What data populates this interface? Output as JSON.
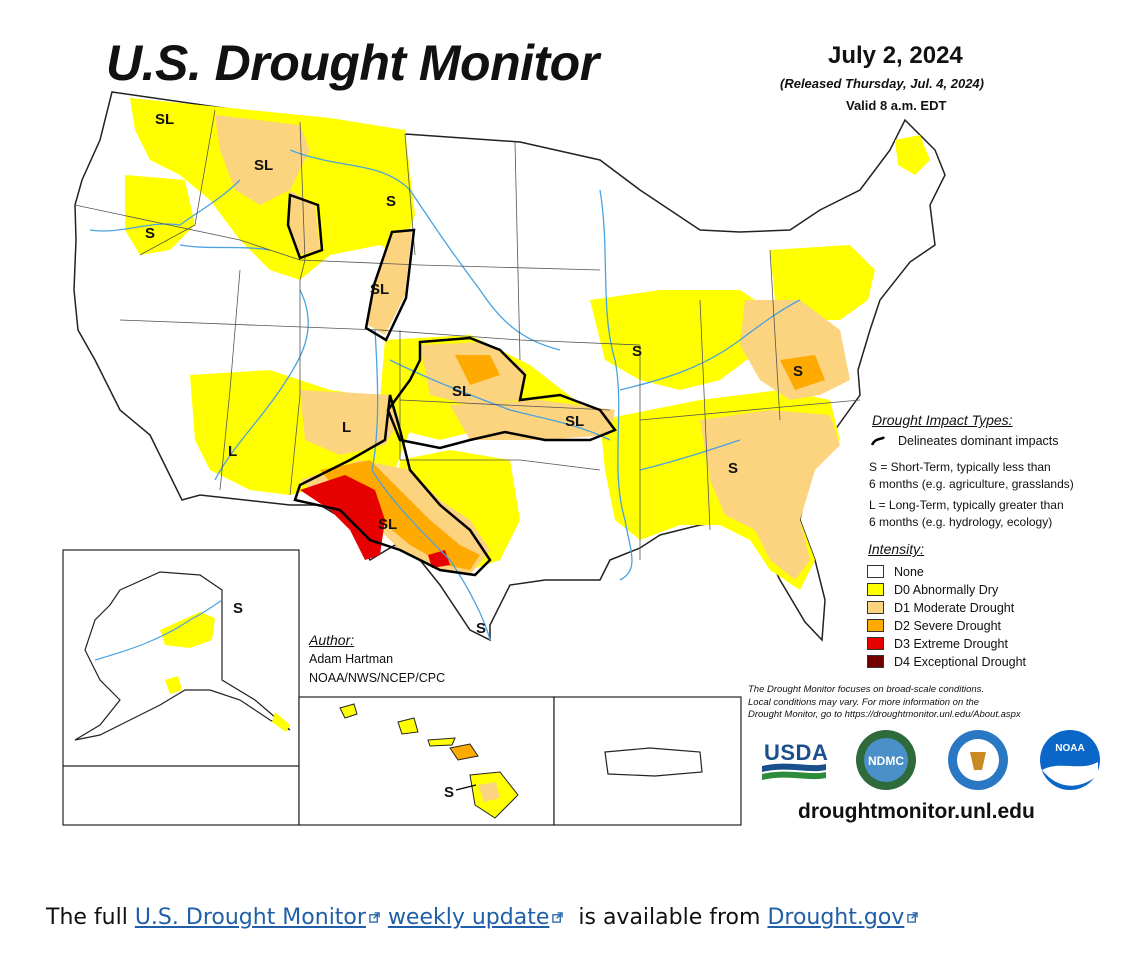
{
  "header": {
    "title": "U.S. Drought Monitor",
    "date": "July 2, 2024",
    "released": "(Released Thursday, Jul. 4, 2024)",
    "valid": "Valid 8 a.m. EDT"
  },
  "map_labels": {
    "sl_nw_mt": "SL",
    "sl_mt": "SL",
    "s_wa": "S",
    "s_nd": "S",
    "sl_wy": "SL",
    "sl_ks": "SL",
    "sl_ok": "SL",
    "l_nm": "L",
    "l_az": "L",
    "sl_tx": "SL",
    "s_tx_coast": "S",
    "s_il": "S",
    "s_va": "S",
    "s_ga": "S",
    "s_ak": "S",
    "s_hi": "S"
  },
  "impact_types": {
    "heading": "Drought Impact Types:",
    "delineates": "Delineates dominant impacts",
    "short_term_line1": "S = Short-Term, typically less than",
    "short_term_line2": "6 months (e.g. agriculture, grasslands)",
    "long_term_line1": "L = Long-Term, typically greater than",
    "long_term_line2": "6 months (e.g. hydrology, ecology)"
  },
  "intensity": {
    "heading": "Intensity:",
    "items": [
      {
        "label": "None",
        "color": "#ffffff"
      },
      {
        "label": "D0 Abnormally Dry",
        "color": "#ffff00"
      },
      {
        "label": "D1 Moderate Drought",
        "color": "#fcd37f"
      },
      {
        "label": "D2 Severe Drought",
        "color": "#ffaa00"
      },
      {
        "label": "D3 Extreme Drought",
        "color": "#e60000"
      },
      {
        "label": "D4 Exceptional Drought",
        "color": "#730000"
      }
    ]
  },
  "author": {
    "heading": "Author:",
    "name": "Adam Hartman",
    "org": "NOAA/NWS/NCEP/CPC"
  },
  "disclaimer": {
    "line1": "The Drought Monitor focuses on broad-scale conditions.",
    "line2": "Local conditions may vary. For more information on the",
    "line3": "Drought Monitor, go to https://droughtmonitor.unl.edu/About.aspx"
  },
  "logos": {
    "usda": "USDA",
    "ndmc": "NDMC",
    "noaa": "NOAA"
  },
  "url": "droughtmonitor.unl.edu",
  "footer": {
    "prefix": "The full ",
    "link1": "U.S. Drought Monitor",
    "link2": "weekly update",
    "middle": " is available from ",
    "link3": "Drought.gov"
  },
  "colors": {
    "d0": "#ffff00",
    "d1": "#fcd37f",
    "d2": "#ffaa00",
    "d3": "#e60000",
    "d4": "#730000",
    "river": "#4aa3df",
    "link": "#1f5fa8"
  }
}
